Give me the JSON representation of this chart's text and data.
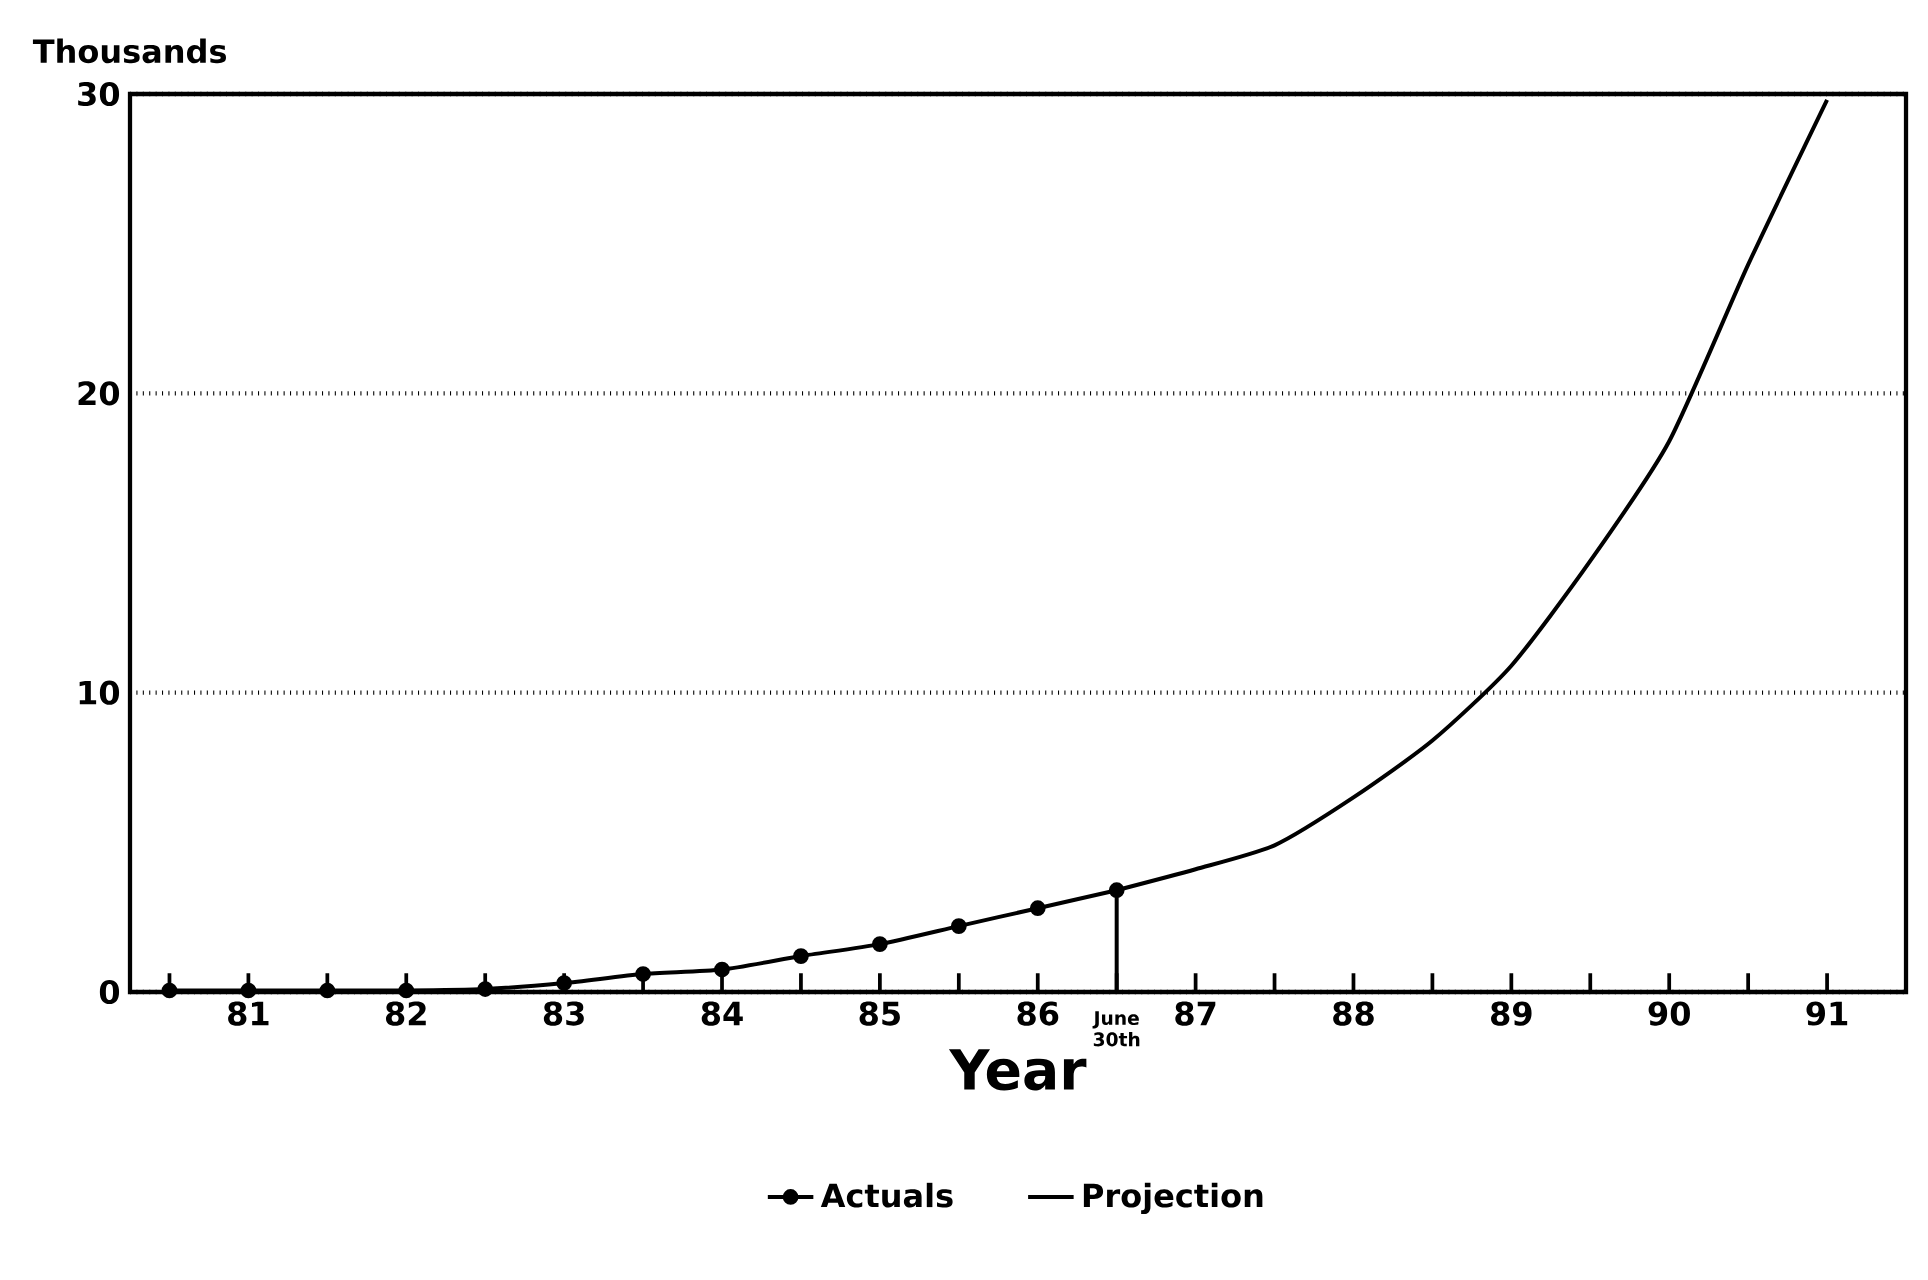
{
  "chart_data": {
    "type": "line",
    "ylabel": "Thousands",
    "xlabel": "Year",
    "xlim": [
      80.25,
      91.5
    ],
    "ylim": [
      0,
      30
    ],
    "xticks": [
      {
        "value": 80.5,
        "label": null
      },
      81,
      {
        "value": 81.5,
        "label": null
      },
      82,
      {
        "value": 82.5,
        "label": null
      },
      83,
      {
        "value": 83.5,
        "label": null
      },
      84,
      {
        "value": 84.5,
        "label": null
      },
      85,
      {
        "value": 85.5,
        "label": null
      },
      86,
      {
        "value": 86.5,
        "label": null
      },
      87,
      {
        "value": 87.5,
        "label": null
      },
      88,
      {
        "value": 88.5,
        "label": null
      },
      89,
      {
        "value": 89.5,
        "label": null
      },
      90,
      {
        "value": 90.5,
        "label": null
      },
      91
    ],
    "yticks": [
      0,
      10,
      20,
      30
    ],
    "grid": "y",
    "legend": "bottom",
    "line_style": "solid",
    "series": [
      {
        "name": "Actuals",
        "color": "#000000",
        "marker": "circle",
        "x": [
          80.5,
          81,
          81.5,
          82,
          82.5,
          83,
          83.5,
          84,
          84.5,
          85,
          85.5,
          86,
          86.5
        ],
        "values": [
          0.05,
          0.05,
          0.05,
          0.05,
          0.1,
          0.3,
          0.6,
          0.75,
          1.2,
          1.6,
          2.2,
          2.8,
          3.4
        ]
      },
      {
        "name": "Projection",
        "color": "#000000",
        "marker": "none",
        "x": [
          86.5,
          87,
          87.5,
          88,
          88.5,
          89,
          89.5,
          90,
          90.5,
          91
        ],
        "values": [
          3.4,
          4.1,
          4.9,
          6.5,
          8.4,
          10.9,
          14.4,
          18.4,
          24.3,
          29.8
        ]
      }
    ],
    "annotations": [
      {
        "text": "June 30th",
        "x": 86.5,
        "y": 3.4
      }
    ]
  }
}
